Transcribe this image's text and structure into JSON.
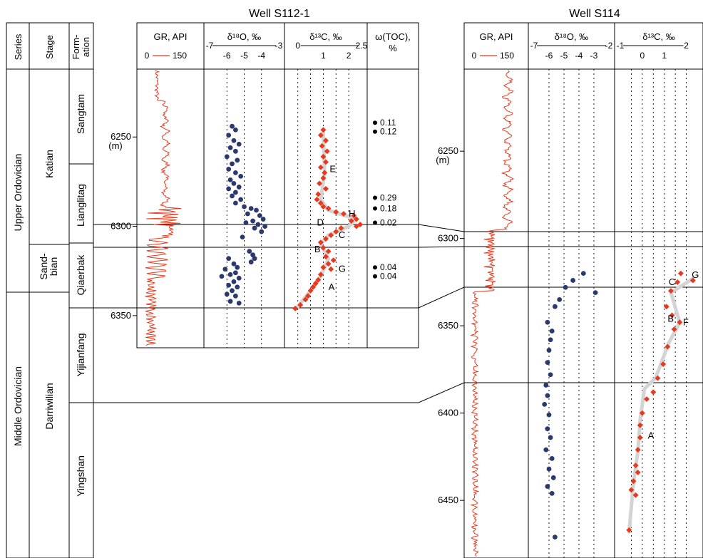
{
  "wells": {
    "left_title": "Well S112-1",
    "right_title": "Well S114"
  },
  "strat": {
    "series_header": "Series",
    "stage_header": "Stage",
    "formation_header_1": "Form-",
    "formation_header_2": "ation",
    "series": [
      "Upper Ordovician",
      "Middle Ordovician"
    ],
    "stages": [
      "Katian",
      "Darriwilian"
    ],
    "stage_sandbian_1": "Sand-",
    "stage_sandbian_2": "bian",
    "formations": [
      "Sangtam",
      "Lianglitag",
      "Qiaerbak",
      "Yijianfang",
      "Yingshan"
    ]
  },
  "chart_data": [
    {
      "type": "scatter",
      "well": "S112-1",
      "depth_unit": "(m)",
      "depth_ticks": [
        "6250",
        "6300",
        "6350"
      ],
      "depth_range": [
        6212,
        6368
      ],
      "tracks": {
        "gr": {
          "title": "GR, API",
          "scale_min": "0",
          "scale_max": "150",
          "color": "#e8391d"
        },
        "d18o": {
          "title": "δ¹⁸O, ‰",
          "scale_min": "-7",
          "scale_max": "-3",
          "ticks": [
            "-6",
            "-5",
            "-4"
          ],
          "range": [
            -7,
            -3
          ],
          "color": "#2b3a6e",
          "points": [
            [
              -5.7,
              6244
            ],
            [
              -5.5,
              6246
            ],
            [
              -5.9,
              6249
            ],
            [
              -5.6,
              6252
            ],
            [
              -5.3,
              6254
            ],
            [
              -5.8,
              6256
            ],
            [
              -5.5,
              6258
            ],
            [
              -6.0,
              6261
            ],
            [
              -5.4,
              6263
            ],
            [
              -5.7,
              6265
            ],
            [
              -5.9,
              6268
            ],
            [
              -5.5,
              6270
            ],
            [
              -5.2,
              6272
            ],
            [
              -5.8,
              6274
            ],
            [
              -5.6,
              6276
            ],
            [
              -5.3,
              6278
            ],
            [
              -5.9,
              6279
            ],
            [
              -5.5,
              6281
            ],
            [
              -5.7,
              6283
            ],
            [
              -5.2,
              6285
            ],
            [
              -5.5,
              6287
            ],
            [
              -5.0,
              6289
            ],
            [
              -4.6,
              6290
            ],
            [
              -4.3,
              6291
            ],
            [
              -4.8,
              6293
            ],
            [
              -4.1,
              6294
            ],
            [
              -3.9,
              6296
            ],
            [
              -4.5,
              6297
            ],
            [
              -4.9,
              6298
            ],
            [
              -4.2,
              6299
            ],
            [
              -3.8,
              6300
            ],
            [
              -4.4,
              6301
            ],
            [
              -4.0,
              6303
            ],
            [
              -5.1,
              6306
            ],
            [
              -4.7,
              6314
            ],
            [
              -4.5,
              6316
            ],
            [
              -4.4,
              6318
            ],
            [
              -4.6,
              6320
            ],
            [
              -5.9,
              6318
            ],
            [
              -5.6,
              6321
            ],
            [
              -5.4,
              6323
            ],
            [
              -6.1,
              6324
            ],
            [
              -5.5,
              6326
            ],
            [
              -5.8,
              6327
            ],
            [
              -6.3,
              6328
            ],
            [
              -5.3,
              6329
            ],
            [
              -5.6,
              6331
            ],
            [
              -5.9,
              6333
            ],
            [
              -5.4,
              6334
            ],
            [
              -5.7,
              6336
            ],
            [
              -6.0,
              6338
            ],
            [
              -5.5,
              6339
            ],
            [
              -5.8,
              6342
            ],
            [
              -5.3,
              6343
            ]
          ]
        },
        "d13c": {
          "title": "δ¹³C, ‰",
          "scale_min": "0",
          "scale_max": "2.5",
          "ticks": [
            "1",
            "2"
          ],
          "range": [
            -0.3,
            2.5
          ],
          "color": "#e8391d",
          "points": [
            [
              1.0,
              6246
            ],
            [
              0.9,
              6249
            ],
            [
              1.1,
              6252
            ],
            [
              0.95,
              6255
            ],
            [
              1.15,
              6258
            ],
            [
              1.0,
              6261
            ],
            [
              1.1,
              6264
            ],
            [
              0.9,
              6267
            ],
            [
              1.05,
              6270
            ],
            [
              1.0,
              6273
            ],
            [
              0.85,
              6276
            ],
            [
              1.1,
              6279
            ],
            [
              0.8,
              6282
            ],
            [
              0.75,
              6285
            ],
            [
              0.9,
              6287
            ],
            [
              1.0,
              6289
            ],
            [
              1.2,
              6290
            ],
            [
              1.5,
              6292
            ],
            [
              1.8,
              6293
            ],
            [
              2.2,
              6294
            ],
            [
              2.3,
              6296
            ],
            [
              2.1,
              6297
            ],
            [
              2.45,
              6299
            ],
            [
              2.3,
              6300
            ],
            [
              1.7,
              6301
            ],
            [
              1.5,
              6303
            ],
            [
              1.3,
              6305
            ],
            [
              1.1,
              6307
            ],
            [
              0.9,
              6309
            ],
            [
              1.0,
              6312
            ],
            [
              1.2,
              6314
            ],
            [
              1.1,
              6317
            ],
            [
              1.4,
              6319
            ],
            [
              1.2,
              6321
            ],
            [
              1.0,
              6323
            ],
            [
              1.3,
              6324
            ],
            [
              0.9,
              6327
            ],
            [
              0.8,
              6330
            ],
            [
              0.7,
              6332
            ],
            [
              0.6,
              6334
            ],
            [
              0.5,
              6336
            ],
            [
              0.4,
              6339
            ],
            [
              0.3,
              6341
            ],
            [
              0.1,
              6344
            ],
            [
              -0.1,
              6346
            ]
          ],
          "trend": [
            [
              1.0,
              6246
            ],
            [
              1.05,
              6270
            ],
            [
              0.9,
              6285
            ],
            [
              1.2,
              6291
            ],
            [
              2.3,
              6296
            ],
            [
              2.0,
              6300
            ],
            [
              1.2,
              6305
            ],
            [
              0.9,
              6310
            ],
            [
              1.2,
              6318
            ],
            [
              0.9,
              6328
            ],
            [
              0.5,
              6336
            ],
            [
              0.0,
              6345
            ]
          ],
          "annotations": [
            {
              "label": "E",
              "x": 1.25,
              "y": 6268
            },
            {
              "label": "H",
              "x": 2.0,
              "y": 6293
            },
            {
              "label": "D",
              "x": 0.75,
              "y": 6298
            },
            {
              "label": "C",
              "x": 1.6,
              "y": 6305
            },
            {
              "label": "B",
              "x": 0.65,
              "y": 6313
            },
            {
              "label": "G",
              "x": 1.6,
              "y": 6324
            },
            {
              "label": "A",
              "x": 1.2,
              "y": 6334
            }
          ]
        },
        "toc": {
          "title_1": "ω(TOC),",
          "title_2": "%",
          "points": [
            {
              "y": 6242,
              "label": "0.11"
            },
            {
              "y": 6247,
              "label": "0.12"
            },
            {
              "y": 6284,
              "label": "0.29"
            },
            {
              "y": 6290,
              "label": "0.18"
            },
            {
              "y": 6298,
              "label": "0.02"
            },
            {
              "y": 6323,
              "label": "0.04"
            },
            {
              "y": 6328,
              "label": "0.04"
            }
          ]
        }
      }
    },
    {
      "type": "scatter",
      "well": "S114",
      "depth_unit": "(m)",
      "depth_ticks": [
        "6250",
        "6300",
        "6350",
        "6400",
        "6450"
      ],
      "depth_range": [
        6203,
        6483
      ],
      "tracks": {
        "gr": {
          "title": "GR, API",
          "scale_min": "0",
          "scale_max": "150",
          "color": "#e8391d"
        },
        "d18o": {
          "title": "δ¹⁸O, ‰",
          "scale_min": "-7",
          "scale_max": "-2",
          "ticks": [
            "-6",
            "-5",
            "-4",
            "-3"
          ],
          "range": [
            -7,
            -2
          ],
          "color": "#2b3a6e",
          "points": [
            [
              -3.7,
              6320
            ],
            [
              -4.4,
              6324
            ],
            [
              -4.9,
              6328
            ],
            [
              -2.9,
              6331
            ],
            [
              -5.3,
              6335
            ],
            [
              -5.6,
              6339
            ],
            [
              -6.1,
              6348
            ],
            [
              -5.8,
              6353
            ],
            [
              -5.9,
              6358
            ],
            [
              -6.0,
              6364
            ],
            [
              -6.1,
              6371
            ],
            [
              -5.9,
              6378
            ],
            [
              -6.2,
              6384
            ],
            [
              -6.1,
              6390
            ],
            [
              -6.3,
              6395
            ],
            [
              -6.0,
              6401
            ],
            [
              -6.1,
              6409
            ],
            [
              -5.9,
              6414
            ],
            [
              -6.2,
              6421
            ],
            [
              -5.8,
              6426
            ],
            [
              -6.0,
              6432
            ],
            [
              -5.7,
              6437
            ],
            [
              -6.1,
              6442
            ],
            [
              -5.8,
              6446
            ],
            [
              -5.6,
              6471
            ]
          ]
        },
        "d13c": {
          "title": "δ¹³C, ‰",
          "scale_min": "-1",
          "scale_max": "2",
          "ticks": [
            "0",
            "1"
          ],
          "range": [
            -1,
            2.5
          ],
          "color": "#e8391d",
          "points": [
            [
              1.75,
              6320
            ],
            [
              1.6,
              6325
            ],
            [
              2.3,
              6324
            ],
            [
              1.3,
              6330
            ],
            [
              1.1,
              6339
            ],
            [
              1.35,
              6344
            ],
            [
              1.7,
              6348
            ],
            [
              1.45,
              6352
            ],
            [
              1.15,
              6362
            ],
            [
              0.95,
              6372
            ],
            [
              0.7,
              6380
            ],
            [
              0.5,
              6388
            ],
            [
              0.2,
              6392
            ],
            [
              0.0,
              6400
            ],
            [
              -0.1,
              6407
            ],
            [
              -0.1,
              6414
            ],
            [
              -0.2,
              6421
            ],
            [
              -0.3,
              6430
            ],
            [
              -0.2,
              6434
            ],
            [
              -0.4,
              6439
            ],
            [
              -0.5,
              6444
            ],
            [
              -0.3,
              6447
            ],
            [
              -0.6,
              6467
            ]
          ],
          "trend": [
            [
              2.3,
              6323
            ],
            [
              1.3,
              6331
            ],
            [
              1.7,
              6348
            ],
            [
              1.2,
              6360
            ],
            [
              0.6,
              6380
            ],
            [
              0.1,
              6386
            ],
            [
              -0.1,
              6404
            ],
            [
              -0.2,
              6422
            ],
            [
              -0.4,
              6440
            ],
            [
              -0.6,
              6468
            ]
          ],
          "annotations": [
            {
              "label": "C",
              "x": 1.2,
              "y": 6325
            },
            {
              "label": "G",
              "x": 2.25,
              "y": 6321
            },
            {
              "label": "B",
              "x": 1.15,
              "y": 6346
            },
            {
              "label": "F",
              "x": 1.85,
              "y": 6348
            },
            {
              "label": "A",
              "x": 0.25,
              "y": 6413
            }
          ]
        }
      }
    }
  ]
}
